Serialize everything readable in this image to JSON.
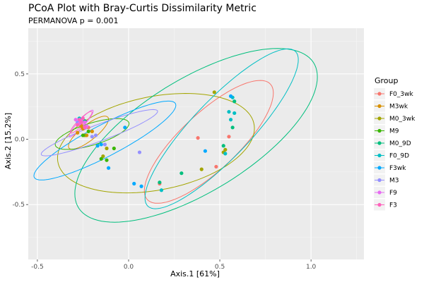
{
  "chart_data": {
    "type": "scatter",
    "title": "PCoA Plot with Bray-Curtis Dissimilarity Metric",
    "subtitle": "PERMANOVA p = 0.001",
    "xlabel": "Axis.1   [61%]",
    "ylabel": "Axis.2   [15.2%]",
    "xlim": [
      -0.55,
      1.29
    ],
    "ylim": [
      -0.92,
      0.85
    ],
    "x_ticks": [
      -0.5,
      0.0,
      0.5,
      1.0
    ],
    "x_tick_labels": [
      "-0.5",
      "0.0",
      "0.5",
      "1.0"
    ],
    "y_ticks": [
      -0.5,
      0.0,
      0.5
    ],
    "y_tick_labels": [
      "-0.5",
      "0.0",
      "0.5"
    ],
    "grid": true,
    "legend": {
      "title": "Group",
      "position": "right"
    },
    "ellipses": true,
    "series": [
      {
        "name": "F0_3wk",
        "color": "#F8766D",
        "points": [
          [
            0.38,
            0.01
          ],
          [
            0.55,
            0.02
          ],
          [
            0.48,
            -0.21
          ],
          [
            0.17,
            -0.34
          ],
          [
            -0.26,
            0.12
          ],
          [
            -0.22,
            0.09
          ]
        ],
        "ellipse": {
          "cx": 0.44,
          "cy": -0.02,
          "rx": 0.56,
          "ry": 0.18,
          "angle": 55
        }
      },
      {
        "name": "M3wk",
        "color": "#D89000",
        "points": [
          [
            -0.28,
            0.05
          ],
          [
            -0.25,
            0.08
          ],
          [
            -0.23,
            0.03
          ],
          [
            -0.2,
            0.06
          ],
          [
            -0.26,
            0.1
          ]
        ],
        "ellipse": {
          "cx": -0.22,
          "cy": 0.05,
          "rx": 0.16,
          "ry": 0.05,
          "angle": 50
        }
      },
      {
        "name": "M0_3wk",
        "color": "#A3A500",
        "points": [
          [
            0.47,
            0.36
          ],
          [
            0.52,
            -0.1
          ],
          [
            0.53,
            -0.08
          ],
          [
            0.4,
            -0.23
          ],
          [
            -0.12,
            -0.07
          ],
          [
            -0.14,
            -0.13
          ],
          [
            -0.24,
            0.03
          ]
        ],
        "ellipse": {
          "cx": 0.15,
          "cy": -0.03,
          "rx": 0.56,
          "ry": 0.35,
          "angle": 20
        }
      },
      {
        "name": "M9",
        "color": "#39B600",
        "points": [
          [
            -0.12,
            -0.16
          ],
          [
            -0.08,
            -0.07
          ],
          [
            -0.15,
            -0.15
          ],
          [
            -0.22,
            0.06
          ],
          [
            -0.25,
            0.03
          ]
        ],
        "ellipse": {
          "cx": -0.2,
          "cy": 0.04,
          "rx": 0.22,
          "ry": 0.08,
          "angle": 25
        }
      },
      {
        "name": "M0_9D",
        "color": "#00BF7D",
        "points": [
          [
            0.58,
            0.29
          ],
          [
            0.57,
            0.09
          ],
          [
            0.52,
            -0.05
          ],
          [
            0.29,
            -0.26
          ],
          [
            0.17,
            -0.33
          ],
          [
            -0.24,
            0.14
          ]
        ],
        "ellipse": {
          "cx": 0.37,
          "cy": 0.03,
          "rx": 0.86,
          "ry": 0.38,
          "angle": 45
        }
      },
      {
        "name": "F0_9D",
        "color": "#00BFC4",
        "points": [
          [
            0.57,
            0.32
          ],
          [
            0.55,
            0.21
          ],
          [
            0.58,
            0.2
          ],
          [
            0.56,
            0.15
          ],
          [
            0.18,
            -0.39
          ],
          [
            0.53,
            -0.11
          ],
          [
            -0.27,
            0.16
          ]
        ],
        "ellipse": {
          "cx": 0.51,
          "cy": 0.08,
          "rx": 0.72,
          "ry": 0.18,
          "angle": 57
        }
      },
      {
        "name": "F3wk",
        "color": "#00A9FF",
        "points": [
          [
            0.56,
            0.33
          ],
          [
            0.42,
            -0.09
          ],
          [
            -0.02,
            0.09
          ],
          [
            0.03,
            -0.34
          ],
          [
            0.07,
            -0.36
          ],
          [
            -0.11,
            -0.22
          ],
          [
            -0.17,
            -0.05
          ],
          [
            -0.15,
            -0.04
          ]
        ],
        "ellipse": {
          "cx": -0.13,
          "cy": -0.01,
          "rx": 0.48,
          "ry": 0.11,
          "angle": 37
        }
      },
      {
        "name": "M3",
        "color": "#9590FF",
        "points": [
          [
            0.06,
            -0.1
          ],
          [
            -0.13,
            -0.04
          ],
          [
            -0.18,
            0.03
          ],
          [
            -0.2,
            0.02
          ],
          [
            -0.28,
            0.13
          ]
        ],
        "ellipse": {
          "cx": -0.16,
          "cy": 0.05,
          "rx": 0.36,
          "ry": 0.06,
          "angle": 28
        }
      },
      {
        "name": "F9",
        "color": "#E76BF3",
        "points": [
          [
            -0.26,
            0.14
          ],
          [
            -0.27,
            0.12
          ],
          [
            -0.29,
            0.15
          ],
          [
            -0.23,
            0.1
          ],
          [
            -0.24,
            0.13
          ]
        ],
        "ellipse": {
          "cx": -0.26,
          "cy": 0.12,
          "rx": 0.12,
          "ry": 0.02,
          "angle": 58
        }
      },
      {
        "name": "F3",
        "color": "#FF62BC",
        "points": [
          [
            -0.27,
            0.15
          ],
          [
            -0.25,
            0.16
          ],
          [
            -0.28,
            0.11
          ],
          [
            -0.24,
            0.09
          ],
          [
            -0.26,
            0.13
          ]
        ],
        "ellipse": {
          "cx": -0.26,
          "cy": 0.13,
          "rx": 0.1,
          "ry": 0.02,
          "angle": 55
        }
      }
    ]
  }
}
